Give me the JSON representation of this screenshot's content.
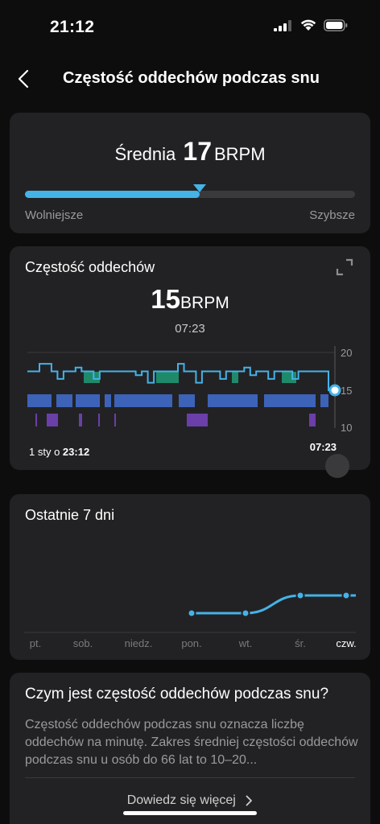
{
  "status_bar": {
    "time": "21:12"
  },
  "header": {
    "title": "Częstość oddechów podczas snu"
  },
  "average": {
    "prefix": "Średnia",
    "value": "17",
    "unit": "BRPM",
    "fill_fraction": 0.53,
    "left_label": "Wolniejsze",
    "right_label": "Szybsze"
  },
  "rate_card": {
    "title": "Częstość oddechów",
    "value": "15",
    "unit": "BRPM",
    "time": "07:23",
    "start_label": "1 sty o ",
    "start_time": "23:12",
    "end_label": "07:23",
    "y_ticks": [
      "20",
      "15",
      "10"
    ]
  },
  "week_card": {
    "title": "Ostatnie 7 dni",
    "days": [
      "pt.",
      "sob.",
      "niedz.",
      "pon.",
      "wt.",
      "śr.",
      "czw."
    ]
  },
  "info_card": {
    "title": "Czym jest częstość oddechów podczas snu?",
    "text": "Częstość oddechów podczas snu oznacza liczbę oddechów na minutę. Zakres średniej częstości oddechów podczas snu u osób do 66 lat to 10–20...",
    "learn_more": "Dowiedz się więcej"
  },
  "colors": {
    "accent": "#45b2e8",
    "light_sleep": "#3d63b8",
    "deep_sleep": "#6a3fa8",
    "rem_sleep": "#1f8a6a",
    "card_bg": "#222224"
  },
  "chart_data": [
    {
      "type": "line",
      "title": "Częstość oddechów",
      "y_unit": "BRPM",
      "ylim": [
        10,
        20
      ],
      "y_ticks": [
        20,
        15,
        10
      ],
      "x_start": "23:12",
      "x_end": "07:23",
      "series": [
        {
          "values": [
            17.5,
            17.5,
            18.5,
            18.5,
            17.5,
            16.5,
            17.5,
            17.5,
            18.0,
            17.5,
            17.5,
            16.5,
            17.5,
            17.5,
            17.5,
            17.5,
            17.5,
            17.5,
            17.0,
            17.5,
            16.0,
            17.5,
            17.5,
            17.5,
            17.5,
            18.5,
            17.5,
            17.5,
            16.0,
            17.5,
            17.5,
            17.5,
            16.5,
            17.5,
            17.5,
            17.5,
            18.0,
            17.0,
            17.5,
            17.5,
            16.5,
            17.5,
            17.5,
            17.5,
            16.5,
            17.5,
            17.5,
            17.5,
            17.5,
            17.5,
            15.0
          ]
        }
      ]
    },
    {
      "type": "line",
      "title": "Ostatnie 7 dni",
      "categories": [
        "pt.",
        "sob.",
        "niedz.",
        "pon.",
        "wt.",
        "śr.",
        "czw."
      ],
      "ylim": [
        10,
        20
      ],
      "series": [
        {
          "values": [
            null,
            null,
            null,
            16,
            16,
            17,
            17
          ]
        }
      ]
    }
  ]
}
